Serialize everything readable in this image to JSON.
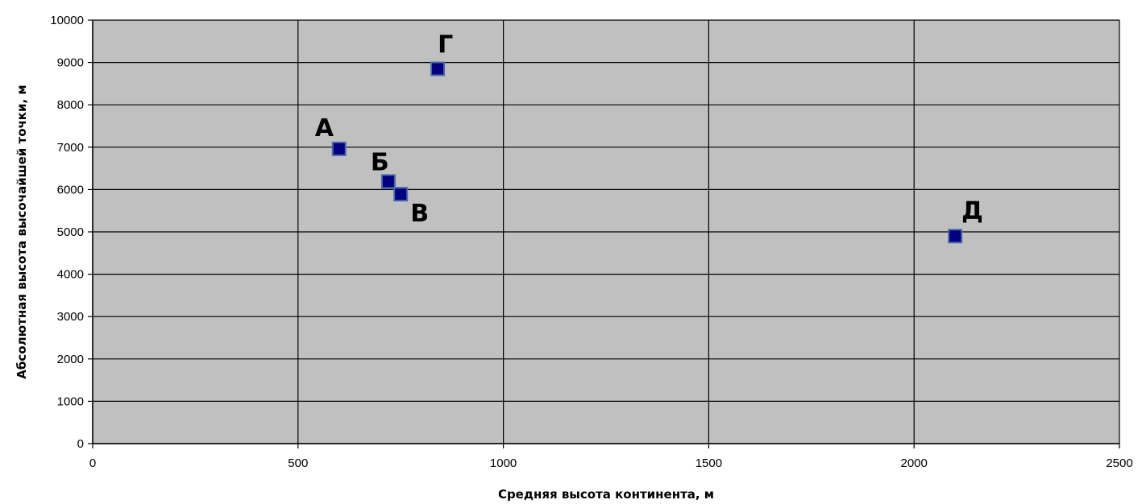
{
  "chart_data": {
    "type": "scatter",
    "title": "",
    "xlabel": "Средняя высота континента, м",
    "ylabel": "Абсолютная высота высочайшей точки, м",
    "xlim": [
      0,
      2500
    ],
    "ylim": [
      0,
      10000
    ],
    "x_ticks": [
      0,
      500,
      1000,
      1500,
      2000,
      2500
    ],
    "y_ticks": [
      0,
      1000,
      2000,
      3000,
      4000,
      5000,
      6000,
      7000,
      8000,
      9000,
      10000
    ],
    "grid": true,
    "legend": "none",
    "plot_background": "#c0c0c0",
    "marker_color": "#000080",
    "marker_shape": "square",
    "points": [
      {
        "label": "А",
        "x": 600,
        "y": 6960
      },
      {
        "label": "Б",
        "x": 720,
        "y": 6190
      },
      {
        "label": "В",
        "x": 750,
        "y": 5890
      },
      {
        "label": "Г",
        "x": 840,
        "y": 8850
      },
      {
        "label": "Д",
        "x": 2100,
        "y": 4900
      }
    ]
  }
}
